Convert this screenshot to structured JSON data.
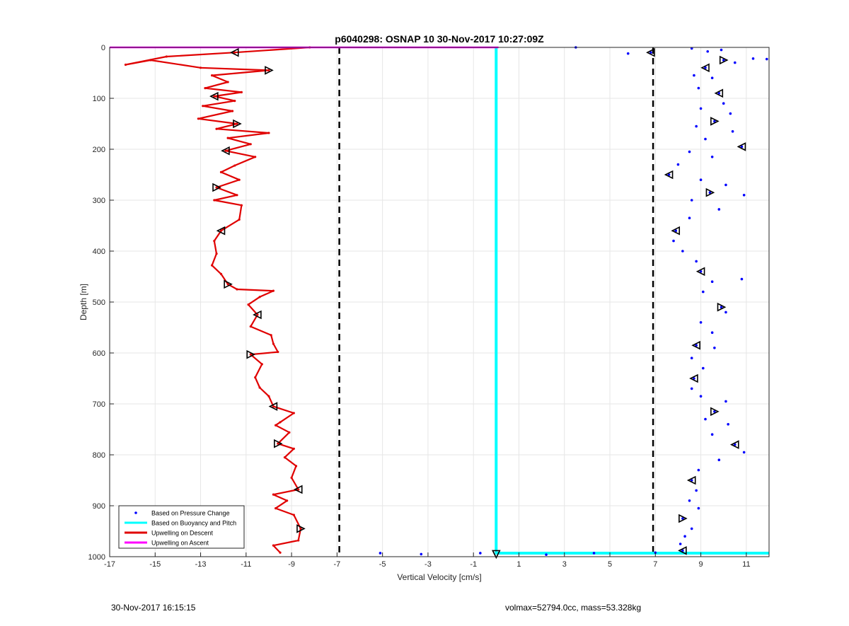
{
  "footer": {
    "timestamp": "30-Nov-2017 16:15:15",
    "info": "volmax=52794.0cc, mass=53.328kg"
  },
  "chart_data": {
    "type": "line",
    "title": "p6040298: OSNAP 10 30-Nov-2017 10:27:09Z",
    "xlabel": "Vertical Velocity [cm/s]",
    "ylabel": "Depth [m]",
    "xlim": [
      -17,
      12
    ],
    "ylim": [
      0,
      1000
    ],
    "y_reversed": true,
    "grid": true,
    "x_ticks": [
      -17,
      -15,
      -13,
      -11,
      -9,
      -7,
      -5,
      -3,
      -1,
      1,
      3,
      5,
      7,
      9,
      11
    ],
    "y_ticks": [
      0,
      100,
      200,
      300,
      400,
      500,
      600,
      700,
      800,
      900,
      1000
    ],
    "legend_location": "bottom-left",
    "legend": [
      {
        "label": "Based on Pressure Change",
        "color": "#0000ff",
        "style": "dots"
      },
      {
        "label": "Based on Buoyancy and Pitch",
        "color": "#00ffff",
        "style": "line"
      },
      {
        "label": "Upwelling on Descent",
        "color": "#e00000",
        "style": "line"
      },
      {
        "label": "Upwelling on Ascent",
        "color": "#ff00ff",
        "style": "line"
      }
    ],
    "reference_lines": [
      {
        "x": -6.9,
        "style": "dashed",
        "color": "#000000"
      },
      {
        "x": 6.9,
        "style": "dashed",
        "color": "#000000"
      }
    ],
    "series": [
      {
        "name": "Upwelling on Descent",
        "color": "#e00000",
        "points": [
          [
            -8.2,
            0
          ],
          [
            -11.5,
            10
          ],
          [
            -14.5,
            18
          ],
          [
            -16.3,
            34
          ],
          [
            -15.2,
            25
          ],
          [
            -13.0,
            40
          ],
          [
            -10.0,
            45
          ],
          [
            -12.5,
            55
          ],
          [
            -11.8,
            68
          ],
          [
            -12.8,
            80
          ],
          [
            -11.2,
            88
          ],
          [
            -12.4,
            96
          ],
          [
            -11.5,
            105
          ],
          [
            -12.9,
            115
          ],
          [
            -11.6,
            125
          ],
          [
            -13.1,
            140
          ],
          [
            -11.4,
            150
          ],
          [
            -12.3,
            160
          ],
          [
            -10.0,
            168
          ],
          [
            -11.8,
            178
          ],
          [
            -10.8,
            190
          ],
          [
            -11.9,
            203
          ],
          [
            -10.6,
            215
          ],
          [
            -11.5,
            232
          ],
          [
            -12.1,
            245
          ],
          [
            -11.3,
            260
          ],
          [
            -12.3,
            275
          ],
          [
            -11.4,
            290
          ],
          [
            -12.4,
            300
          ],
          [
            -11.2,
            310
          ],
          [
            -11.3,
            338
          ],
          [
            -12.1,
            360
          ],
          [
            -12.4,
            380
          ],
          [
            -12.3,
            405
          ],
          [
            -12.5,
            428
          ],
          [
            -12.1,
            445
          ],
          [
            -11.8,
            465
          ],
          [
            -11.4,
            475
          ],
          [
            -9.8,
            478
          ],
          [
            -10.4,
            490
          ],
          [
            -10.9,
            505
          ],
          [
            -10.5,
            525
          ],
          [
            -10.8,
            548
          ],
          [
            -9.9,
            565
          ],
          [
            -9.8,
            582
          ],
          [
            -9.6,
            598
          ],
          [
            -10.8,
            603
          ],
          [
            -10.3,
            622
          ],
          [
            -10.6,
            648
          ],
          [
            -10.4,
            668
          ],
          [
            -10.0,
            685
          ],
          [
            -9.8,
            705
          ],
          [
            -8.9,
            718
          ],
          [
            -9.5,
            736
          ],
          [
            -9.7,
            742
          ],
          [
            -9.1,
            756
          ],
          [
            -9.6,
            778
          ],
          [
            -8.9,
            788
          ],
          [
            -9.3,
            805
          ],
          [
            -8.8,
            822
          ],
          [
            -9.0,
            845
          ],
          [
            -8.7,
            868
          ],
          [
            -9.8,
            878
          ],
          [
            -9.2,
            890
          ],
          [
            -9.7,
            905
          ],
          [
            -8.9,
            918
          ],
          [
            -8.6,
            945
          ],
          [
            -8.7,
            968
          ],
          [
            -9.8,
            978
          ],
          [
            -9.5,
            992
          ]
        ]
      },
      {
        "name": "Upwelling on Ascent",
        "color": "#ff00ff",
        "points": [
          [
            -17,
            0
          ],
          [
            0.1,
            0
          ]
        ]
      },
      {
        "name": "Based on Buoyancy and Pitch",
        "color": "#00ffff",
        "points": [
          [
            0.0,
            0
          ],
          [
            0.0,
            993
          ],
          [
            12.0,
            993
          ]
        ]
      },
      {
        "name": "Based on Pressure Change",
        "color": "#0000ff",
        "points": [
          [
            3.5,
            0
          ],
          [
            5.8,
            12
          ],
          [
            6.8,
            10
          ],
          [
            8.6,
            2
          ],
          [
            9.3,
            8
          ],
          [
            9.9,
            5
          ],
          [
            10.0,
            25
          ],
          [
            11.3,
            22
          ],
          [
            11.9,
            23
          ],
          [
            10.5,
            30
          ],
          [
            9.2,
            40
          ],
          [
            8.7,
            55
          ],
          [
            9.5,
            60
          ],
          [
            8.9,
            80
          ],
          [
            9.8,
            90
          ],
          [
            10.0,
            110
          ],
          [
            9.0,
            120
          ],
          [
            10.3,
            130
          ],
          [
            9.6,
            145
          ],
          [
            8.8,
            155
          ],
          [
            10.4,
            165
          ],
          [
            9.2,
            180
          ],
          [
            10.8,
            195
          ],
          [
            8.5,
            205
          ],
          [
            9.5,
            215
          ],
          [
            8.0,
            230
          ],
          [
            7.6,
            250
          ],
          [
            9.0,
            260
          ],
          [
            10.1,
            270
          ],
          [
            10.9,
            290
          ],
          [
            9.4,
            285
          ],
          [
            8.6,
            300
          ],
          [
            9.8,
            318
          ],
          [
            8.5,
            335
          ],
          [
            7.9,
            360
          ],
          [
            7.8,
            380
          ],
          [
            8.2,
            400
          ],
          [
            8.8,
            420
          ],
          [
            9.0,
            440
          ],
          [
            9.5,
            460
          ],
          [
            10.8,
            455
          ],
          [
            9.1,
            480
          ],
          [
            9.9,
            510
          ],
          [
            10.1,
            520
          ],
          [
            9.0,
            540
          ],
          [
            9.5,
            560
          ],
          [
            8.8,
            585
          ],
          [
            9.6,
            590
          ],
          [
            8.6,
            610
          ],
          [
            9.1,
            630
          ],
          [
            8.7,
            650
          ],
          [
            8.6,
            670
          ],
          [
            9.0,
            685
          ],
          [
            10.1,
            695
          ],
          [
            9.6,
            715
          ],
          [
            9.2,
            730
          ],
          [
            10.2,
            740
          ],
          [
            9.5,
            760
          ],
          [
            10.5,
            780
          ],
          [
            10.9,
            795
          ],
          [
            9.8,
            810
          ],
          [
            8.9,
            830
          ],
          [
            8.6,
            850
          ],
          [
            8.8,
            870
          ],
          [
            8.5,
            890
          ],
          [
            8.9,
            905
          ],
          [
            8.2,
            925
          ],
          [
            8.6,
            945
          ],
          [
            8.3,
            960
          ],
          [
            8.1,
            975
          ],
          [
            8.2,
            988
          ],
          [
            -5.1,
            993
          ],
          [
            -3.3,
            995
          ],
          [
            2.2,
            996
          ],
          [
            4.3,
            993
          ],
          [
            7.0,
            992
          ],
          [
            -0.7,
            993
          ]
        ]
      }
    ]
  }
}
